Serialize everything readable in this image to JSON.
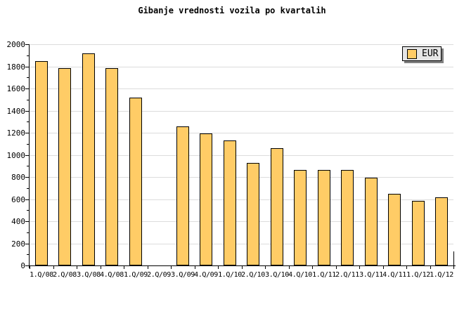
{
  "title": "Gibanje vrednosti vozila po kvartalih",
  "legend": {
    "label": "EUR"
  },
  "colors": {
    "bar_fill": "#FFCC66",
    "bar_border": "#000000",
    "grid": "#DCDCDC",
    "axis": "#000000",
    "legend_bg": "#E6E6E6",
    "legend_shadow": "#808080",
    "background": "#FFFFFF"
  },
  "chart_data": {
    "type": "bar",
    "title": "Gibanje vrednosti vozila po kvartalih",
    "categories": [
      "1.Q/08",
      "2.Q/08",
      "3.Q/08",
      "4.Q/08",
      "1.Q/09",
      "2.Q/09",
      "3.Q/09",
      "4.Q/09",
      "1.Q/10",
      "2.Q/10",
      "3.Q/10",
      "4.Q/10",
      "1.Q/11",
      "2.Q/11",
      "3.Q/11",
      "4.Q/11",
      "1.Q/12",
      "1.Q/12"
    ],
    "series": [
      {
        "name": "EUR",
        "values": [
          1845,
          1785,
          1915,
          1785,
          1520,
          null,
          1260,
          1195,
          1130,
          930,
          1060,
          865,
          865,
          865,
          795,
          650,
          585,
          615
        ]
      }
    ],
    "xlabel": "",
    "ylabel": "",
    "ylim": [
      0,
      2000
    ],
    "ytick_major_step": 200,
    "ytick_minor_step": 100,
    "grid": "horizontal-major",
    "legend_position": "top-right",
    "missing_categories": [
      "2.Q/09"
    ]
  }
}
